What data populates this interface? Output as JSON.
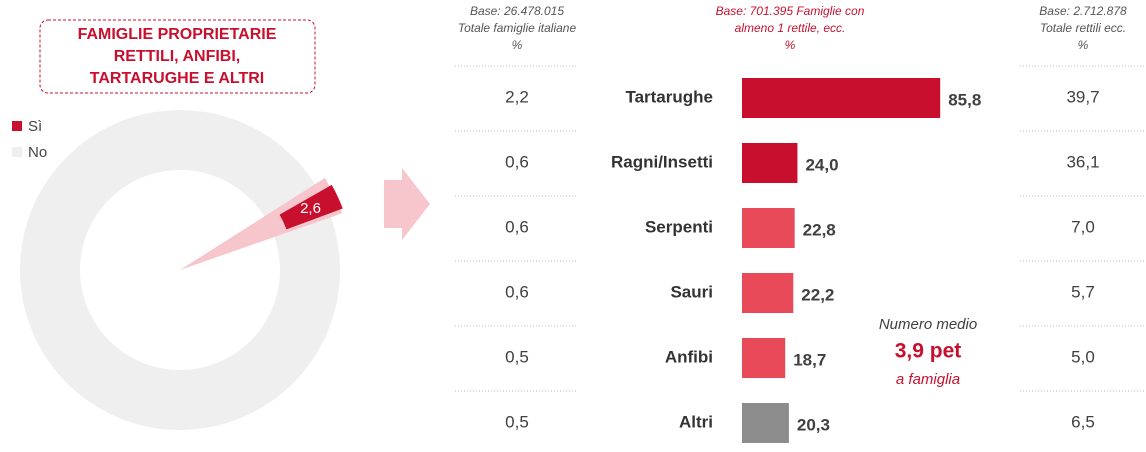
{
  "title_lines": [
    "FAMIGLIE PROPRIETARIE",
    "RETTILI, ANFIBI,",
    "TARTARUGHE E ALTRI"
  ],
  "chart_data": [
    {
      "type": "donut",
      "categories": [
        "Sì",
        "No"
      ],
      "values": [
        2.6,
        97.4
      ],
      "value_labels": [
        "2,6",
        null
      ],
      "colors": [
        "#c8102e",
        "#efefef"
      ]
    },
    {
      "type": "bar",
      "header": [
        "Base: 701.395 Famiglie con",
        "almeno 1 rettile, ecc.",
        "%"
      ],
      "categories": [
        "Tartarughe",
        "Ragni/Insetti",
        "Serpenti",
        "Sauri",
        "Anfibi",
        "Altri"
      ],
      "values": [
        85.8,
        24.0,
        22.8,
        22.2,
        18.7,
        20.3
      ],
      "value_labels": [
        "85,8",
        "24,0",
        "22,8",
        "22,2",
        "18,7",
        "20,3"
      ],
      "colors": [
        "#c8102e",
        "#c8102e",
        "#e84a5a",
        "#e84a5a",
        "#e84a5a",
        "#8c8c8c"
      ],
      "xlim": [
        0,
        100
      ]
    }
  ],
  "left_table": {
    "header": [
      "Base: 26.478.015",
      "Totale famiglie italiane",
      "%"
    ],
    "rows": [
      "2,2",
      "0,6",
      "0,6",
      "0,6",
      "0,5",
      "0,5"
    ]
  },
  "right_table": {
    "header": [
      "Base: 2.712.878",
      "Totale rettili ecc.",
      "%"
    ],
    "rows": [
      "39,7",
      "36,1",
      "7,0",
      "5,7",
      "5,0",
      "6,5"
    ]
  },
  "annotation": [
    "Numero medio",
    "3,9 pet",
    "a famiglia"
  ]
}
